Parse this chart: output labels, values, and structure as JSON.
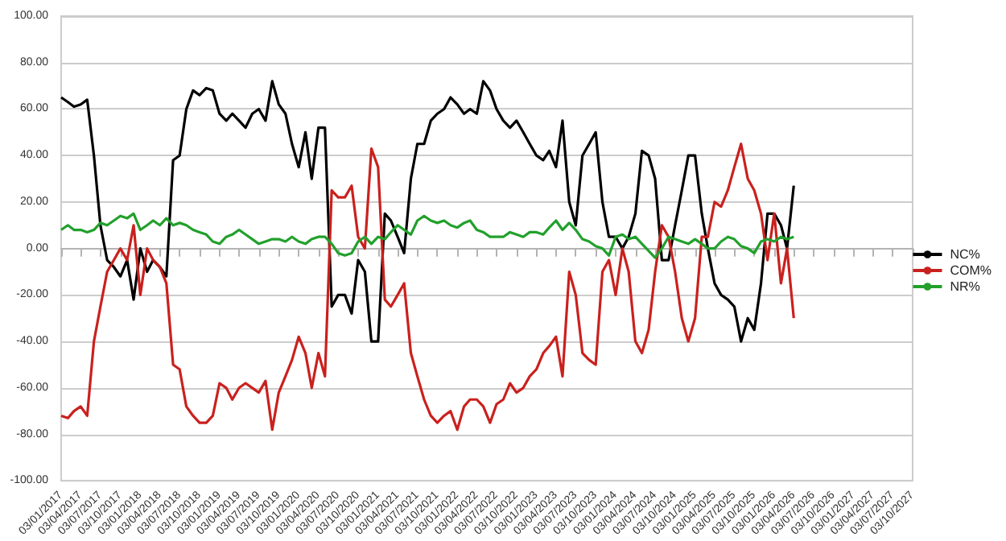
{
  "chart_data": {
    "type": "line",
    "x": [
      "2017-01-03",
      "2017-02-03",
      "2017-03-03",
      "2017-04-03",
      "2017-05-03",
      "2017-06-03",
      "2017-07-03",
      "2017-08-03",
      "2017-09-03",
      "2017-10-03",
      "2017-11-03",
      "2017-12-03",
      "2018-01-03",
      "2018-02-03",
      "2018-03-03",
      "2018-04-03",
      "2018-05-03",
      "2018-06-03",
      "2018-07-03",
      "2018-08-03",
      "2018-09-03",
      "2018-10-03",
      "2018-11-03",
      "2018-12-03",
      "2019-01-03",
      "2019-02-03",
      "2019-03-03",
      "2019-04-03",
      "2019-05-03",
      "2019-06-03",
      "2019-07-03",
      "2019-08-03",
      "2019-09-03",
      "2019-10-03",
      "2019-11-03",
      "2019-12-03",
      "2020-01-03",
      "2020-02-03",
      "2020-03-03",
      "2020-04-03",
      "2020-05-03",
      "2020-06-03",
      "2020-07-03",
      "2020-08-03",
      "2020-09-03",
      "2020-10-03",
      "2020-11-03",
      "2020-12-03",
      "2021-01-03",
      "2021-02-03",
      "2021-03-03",
      "2021-04-03",
      "2021-05-03",
      "2021-06-03",
      "2021-07-03",
      "2021-08-03",
      "2021-09-03",
      "2021-10-03",
      "2021-11-03",
      "2021-12-03",
      "2022-01-03",
      "2022-02-03",
      "2022-03-03",
      "2022-04-03",
      "2022-05-03",
      "2022-06-03",
      "2022-07-03",
      "2022-08-03",
      "2022-09-03",
      "2022-10-03",
      "2022-11-03",
      "2022-12-03",
      "2023-01-03",
      "2023-02-03",
      "2023-03-03",
      "2023-04-03",
      "2023-05-03",
      "2023-06-03",
      "2023-07-03",
      "2023-08-03",
      "2023-09-03",
      "2023-10-03",
      "2023-11-03",
      "2023-12-03",
      "2024-01-03",
      "2024-02-03",
      "2024-03-03",
      "2024-04-03",
      "2024-05-03",
      "2024-06-03",
      "2024-07-03",
      "2024-08-03",
      "2024-09-03",
      "2024-10-03",
      "2024-11-03",
      "2024-12-03",
      "2025-01-03",
      "2025-02-03",
      "2025-03-03",
      "2025-04-03",
      "2025-05-03",
      "2025-06-03",
      "2025-07-03",
      "2025-08-03",
      "2025-09-03",
      "2025-10-03",
      "2025-11-03",
      "2025-12-03",
      "2026-01-03",
      "2026-02-03",
      "2026-03-03",
      "2026-04-03"
    ],
    "series": [
      {
        "name": "NC%",
        "color": "#000000",
        "values": [
          65,
          63,
          61,
          62,
          64,
          40,
          10,
          -5,
          -8,
          -12,
          -5,
          -22,
          0,
          -10,
          -5,
          -8,
          -12,
          38,
          40,
          60,
          68,
          66,
          69,
          68,
          58,
          55,
          58,
          55,
          52,
          58,
          60,
          55,
          72,
          62,
          58,
          45,
          35,
          50,
          30,
          52,
          52,
          -25,
          -20,
          -20,
          -28,
          -5,
          -10,
          -40,
          -40,
          15,
          12,
          5,
          -2,
          30,
          45,
          45,
          55,
          58,
          60,
          65,
          62,
          58,
          60,
          58,
          72,
          68,
          60,
          55,
          52,
          55,
          50,
          45,
          40,
          38,
          42,
          35,
          55,
          20,
          10,
          40,
          45,
          50,
          20,
          5,
          5,
          0,
          5,
          15,
          42,
          40,
          30,
          -5,
          -5,
          10,
          25,
          40,
          40,
          15,
          0,
          -15,
          -20,
          -22,
          -25,
          -40,
          -30,
          -35,
          -15,
          15,
          15,
          10,
          0,
          27
        ]
      },
      {
        "name": "COM%",
        "color": "#c9211e",
        "values": [
          -72,
          -73,
          -70,
          -68,
          -72,
          -40,
          -25,
          -10,
          -5,
          0,
          -5,
          10,
          -20,
          0,
          -5,
          -8,
          -15,
          -50,
          -52,
          -68,
          -72,
          -75,
          -75,
          -72,
          -58,
          -60,
          -65,
          -60,
          -58,
          -60,
          -62,
          -57,
          -78,
          -62,
          -55,
          -48,
          -38,
          -45,
          -60,
          -45,
          -55,
          25,
          22,
          22,
          27,
          5,
          0,
          43,
          35,
          -22,
          -25,
          -20,
          -15,
          -45,
          -55,
          -65,
          -72,
          -75,
          -72,
          -70,
          -78,
          -68,
          -65,
          -65,
          -68,
          -75,
          -67,
          -65,
          -58,
          -62,
          -60,
          -55,
          -52,
          -45,
          -42,
          -38,
          -55,
          -10,
          -20,
          -45,
          -48,
          -50,
          -10,
          -5,
          -20,
          0,
          -10,
          -40,
          -45,
          -35,
          -10,
          10,
          5,
          -10,
          -30,
          -40,
          -30,
          5,
          5,
          20,
          18,
          25,
          35,
          45,
          30,
          25,
          15,
          -5,
          15,
          -15,
          0,
          -30
        ]
      },
      {
        "name": "NR%",
        "color": "#22a02c",
        "values": [
          8,
          10,
          8,
          8,
          7,
          8,
          11,
          10,
          12,
          14,
          13,
          15,
          8,
          10,
          12,
          10,
          13,
          10,
          11,
          10,
          8,
          7,
          6,
          3,
          2,
          5,
          6,
          8,
          6,
          4,
          2,
          3,
          4,
          4,
          3,
          5,
          3,
          2,
          4,
          5,
          5,
          2,
          -2,
          -3,
          -2,
          3,
          5,
          2,
          5,
          4,
          7,
          10,
          8,
          6,
          12,
          14,
          12,
          11,
          12,
          10,
          9,
          11,
          12,
          8,
          7,
          5,
          5,
          5,
          7,
          6,
          5,
          7,
          7,
          6,
          9,
          12,
          8,
          11,
          8,
          4,
          3,
          1,
          0,
          -3,
          5,
          6,
          4,
          5,
          2,
          -1,
          -4,
          0,
          5,
          4,
          3,
          2,
          4,
          2,
          0,
          0,
          3,
          5,
          4,
          1,
          0,
          -2,
          3,
          4,
          3,
          5,
          4,
          5
        ]
      }
    ],
    "xlim": [
      "2017-01-03",
      "2027-10-03"
    ],
    "xticks": [
      {
        "value": "2017-01-03",
        "label": "03/01/2017"
      },
      {
        "value": "2017-04-03",
        "label": "03/04/2017"
      },
      {
        "value": "2017-07-03",
        "label": "03/07/2017"
      },
      {
        "value": "2017-10-03",
        "label": "03/10/2017"
      },
      {
        "value": "2018-01-03",
        "label": "03/01/2018"
      },
      {
        "value": "2018-04-03",
        "label": "03/04/2018"
      },
      {
        "value": "2018-07-03",
        "label": "03/07/2018"
      },
      {
        "value": "2018-10-03",
        "label": "03/10/2018"
      },
      {
        "value": "2019-01-03",
        "label": "03/01/2019"
      },
      {
        "value": "2019-04-03",
        "label": "03/04/2019"
      },
      {
        "value": "2019-07-03",
        "label": "03/07/2019"
      },
      {
        "value": "2019-10-03",
        "label": "03/10/2019"
      },
      {
        "value": "2020-01-03",
        "label": "03/01/2020"
      },
      {
        "value": "2020-04-03",
        "label": "03/04/2020"
      },
      {
        "value": "2020-07-03",
        "label": "03/07/2020"
      },
      {
        "value": "2020-10-03",
        "label": "03/10/2020"
      },
      {
        "value": "2021-01-03",
        "label": "03/01/2021"
      },
      {
        "value": "2021-04-03",
        "label": "03/04/2021"
      },
      {
        "value": "2021-07-03",
        "label": "03/07/2021"
      },
      {
        "value": "2021-10-03",
        "label": "03/10/2021"
      },
      {
        "value": "2022-01-03",
        "label": "03/01/2022"
      },
      {
        "value": "2022-04-03",
        "label": "03/04/2022"
      },
      {
        "value": "2022-07-03",
        "label": "03/07/2022"
      },
      {
        "value": "2022-10-03",
        "label": "03/10/2022"
      },
      {
        "value": "2023-01-03",
        "label": "03/01/2023"
      },
      {
        "value": "2023-04-03",
        "label": "03/04/2023"
      },
      {
        "value": "2023-07-03",
        "label": "03/07/2023"
      },
      {
        "value": "2023-10-03",
        "label": "03/10/2023"
      },
      {
        "value": "2024-01-03",
        "label": "03/01/2024"
      },
      {
        "value": "2024-04-03",
        "label": "03/04/2024"
      },
      {
        "value": "2024-07-03",
        "label": "03/07/2024"
      },
      {
        "value": "2024-10-03",
        "label": "03/10/2024"
      },
      {
        "value": "2025-01-03",
        "label": "03/01/2025"
      },
      {
        "value": "2025-04-03",
        "label": "03/04/2025"
      },
      {
        "value": "2025-07-03",
        "label": "03/07/2025"
      },
      {
        "value": "2025-10-03",
        "label": "03/10/2025"
      },
      {
        "value": "2026-01-03",
        "label": "03/01/2026"
      },
      {
        "value": "2026-04-03",
        "label": "03/04/2026"
      },
      {
        "value": "2026-07-03",
        "label": "03/07/2026"
      },
      {
        "value": "2026-10-03",
        "label": "03/10/2026"
      },
      {
        "value": "2027-01-03",
        "label": "03/01/2027"
      },
      {
        "value": "2027-04-03",
        "label": "03/04/2027"
      },
      {
        "value": "2027-07-03",
        "label": "03/07/2027"
      },
      {
        "value": "2027-10-03",
        "label": "03/10/2027"
      }
    ],
    "ylim": [
      -100,
      100
    ],
    "yticks": [
      {
        "value": -100,
        "label": "-100.00"
      },
      {
        "value": -80,
        "label": "-80.00"
      },
      {
        "value": -60,
        "label": "-60.00"
      },
      {
        "value": -40,
        "label": "-40.00"
      },
      {
        "value": -20,
        "label": "-20.00"
      },
      {
        "value": 0,
        "label": "0.00"
      },
      {
        "value": 20,
        "label": "20.00"
      },
      {
        "value": 40,
        "label": "40.00"
      },
      {
        "value": 60,
        "label": "60.00"
      },
      {
        "value": 80,
        "label": "80.00"
      },
      {
        "value": 100,
        "label": "100.00"
      }
    ],
    "grid": "y",
    "legend": "right"
  }
}
